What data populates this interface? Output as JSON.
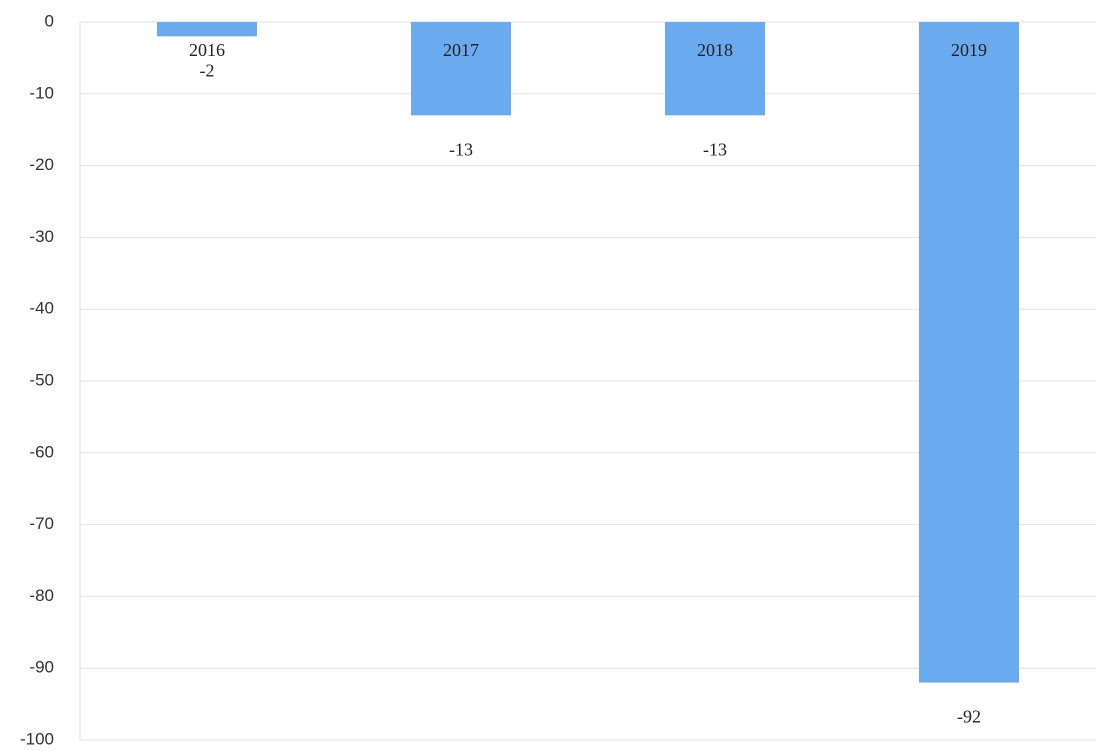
{
  "chart_data": {
    "type": "bar",
    "categories": [
      "2016",
      "2017",
      "2018",
      "2019"
    ],
    "values": [
      -2,
      -13,
      -13,
      -92
    ],
    "color": "#6aaaee",
    "ylim": [
      -100,
      0
    ],
    "yticks": [
      0,
      -10,
      -20,
      -30,
      -40,
      -50,
      -60,
      -70,
      -80,
      -90,
      -100
    ],
    "grid": true
  }
}
